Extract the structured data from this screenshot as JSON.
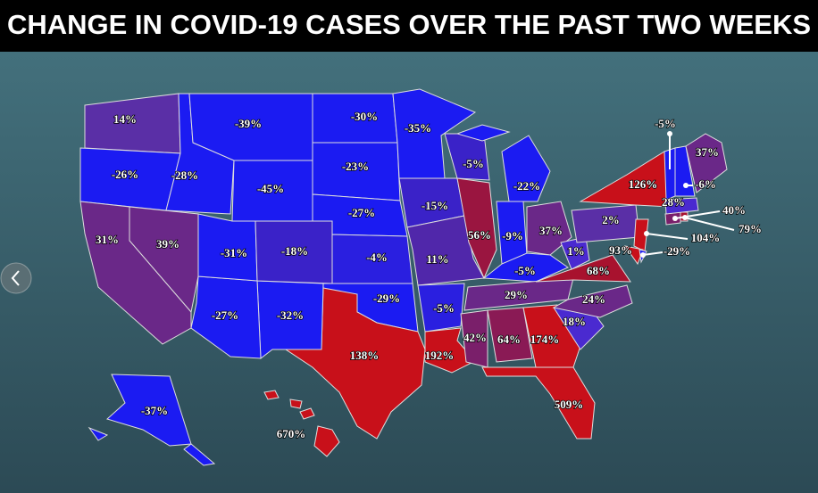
{
  "title": "CHANGE IN COVID-19 CASES OVER THE PAST TWO WEEKS",
  "states": [
    {
      "label": "14%",
      "color": "#5a2fa6"
    },
    {
      "label": "-26%",
      "color": "#1b1bf2"
    },
    {
      "label": "-28%",
      "color": "#1b1bf2"
    },
    {
      "label": "-39%",
      "color": "#1b1bf2"
    },
    {
      "label": "-45%",
      "color": "#1b1bf2"
    },
    {
      "label": "-30%",
      "color": "#1b1bf2"
    },
    {
      "label": "-23%",
      "color": "#1b1bf2"
    },
    {
      "label": "-27%",
      "color": "#1b1bf2"
    },
    {
      "label": "-4%",
      "color": "#2a1fe0"
    },
    {
      "label": "-29%",
      "color": "#1b1bf2"
    },
    {
      "label": "138%",
      "color": "#c8101a"
    },
    {
      "label": "-32%",
      "color": "#1b1bf2"
    },
    {
      "label": "-27%",
      "color": "#1b1bf2"
    },
    {
      "label": "-31%",
      "color": "#1b1bf2"
    },
    {
      "label": "-18%",
      "color": "#3a22c8"
    },
    {
      "label": "39%",
      "color": "#6a2888"
    },
    {
      "label": "31%",
      "color": "#6a2888"
    },
    {
      "label": "-35%",
      "color": "#1b1bf2"
    },
    {
      "label": "-15%",
      "color": "#3a22c8"
    },
    {
      "label": "11%",
      "color": "#5027aa"
    },
    {
      "label": "-5%",
      "color": "#2a1fe0"
    },
    {
      "label": "192%",
      "color": "#c8101a"
    },
    {
      "label": "-5%",
      "color": "#3a22c8"
    },
    {
      "label": "56%",
      "color": "#9a1540"
    },
    {
      "label": "-22%",
      "color": "#1b1bf2"
    },
    {
      "label": "-9%",
      "color": "#1b1bf2"
    },
    {
      "label": "37%",
      "color": "#6a2888"
    },
    {
      "label": "-5%",
      "color": "#1b1bf2"
    },
    {
      "label": "29%",
      "color": "#6a2888"
    },
    {
      "label": "42%",
      "color": "#7a1f6a"
    },
    {
      "label": "64%",
      "color": "#8a1a55"
    },
    {
      "label": "174%",
      "color": "#c8101a"
    },
    {
      "label": "509%",
      "color": "#c8101a"
    },
    {
      "label": "18%",
      "color": "#4a2ad0"
    },
    {
      "label": "24%",
      "color": "#6a2888"
    },
    {
      "label": "68%",
      "color": "#a8122e"
    },
    {
      "label": "1%",
      "color": "#4a2ad0"
    },
    {
      "label": "2%",
      "color": "#5a2fa6"
    },
    {
      "label": "126%",
      "color": "#c8101a"
    },
    {
      "label": "104%",
      "color": "#c8101a"
    },
    {
      "label": "93%",
      "color": "#c8101a"
    },
    {
      "label": "-29%",
      "color": "#1b1bf2"
    },
    {
      "label": "40%",
      "color": "#7a1f6a"
    },
    {
      "label": "79%",
      "color": "#a8122e"
    },
    {
      "label": "28%",
      "color": "#4a2ad0"
    },
    {
      "label": "-5%",
      "color": "#1b1bf2"
    },
    {
      "label": "-6%",
      "color": "#1b1bf2"
    },
    {
      "label": "37%",
      "color": "#6a2888"
    },
    {
      "label": "670%",
      "color": "#c8101a"
    },
    {
      "label": "-37%",
      "color": "#1b1bf2"
    }
  ]
}
